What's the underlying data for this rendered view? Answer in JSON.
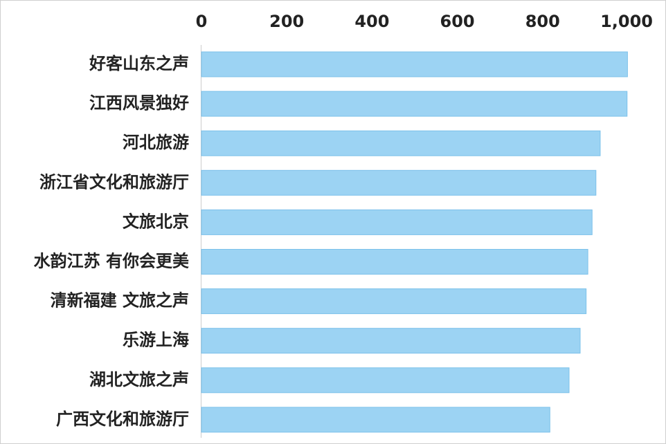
{
  "chart_data": {
    "type": "bar",
    "orientation": "horizontal",
    "categories": [
      "好客山东之声",
      "江西风景独好",
      "河北旅游",
      "浙江省文化和旅游厅",
      "文旅北京",
      "水韵江苏 有你会更美",
      "清新福建 文旅之声",
      "乐游上海",
      "湖北文旅之声",
      "广西文化和旅游厅"
    ],
    "values": [
      999,
      998,
      935,
      925,
      916,
      906,
      902,
      888,
      862,
      817
    ],
    "xlim": [
      0,
      1000
    ],
    "x_ticks": [
      "0",
      "200",
      "400",
      "600",
      "800",
      "1,000"
    ],
    "x_axis_position": "top",
    "title": "",
    "xlabel": "",
    "ylabel": "",
    "grid": false,
    "legend": "none",
    "bar_color": "#9cd3f3",
    "bar_stroke": "#7cc1ea",
    "axis_color": "#cccccc",
    "text_color": "#222222"
  }
}
